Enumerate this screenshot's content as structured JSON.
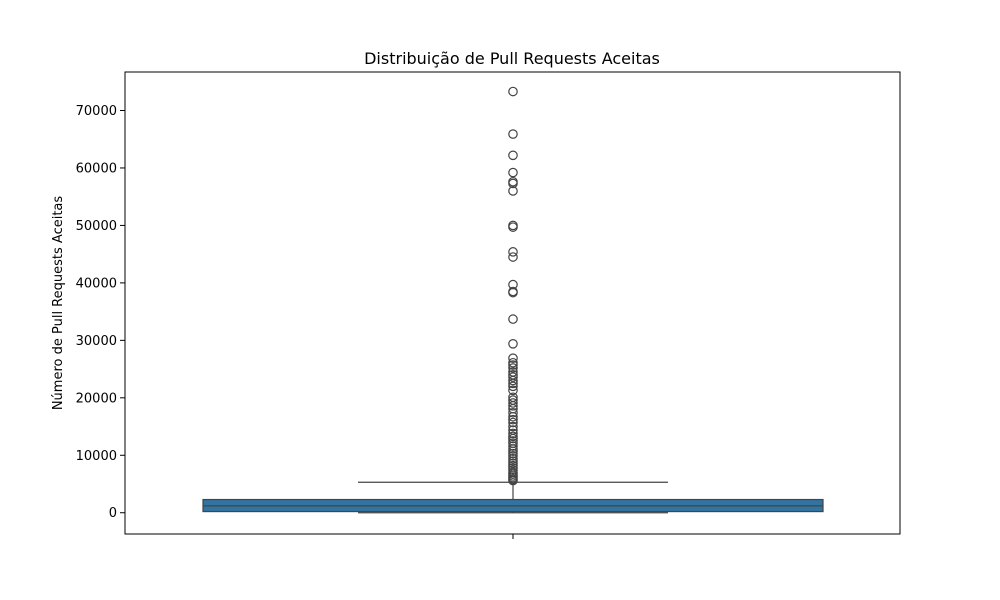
{
  "chart_data": {
    "type": "box",
    "title": "Distribuição de Pull Requests Aceitas",
    "xlabel": "",
    "ylabel": "Número de Pull Requests Aceitas",
    "ylim": [
      -3700,
      76700
    ],
    "yticks": [
      0,
      10000,
      20000,
      30000,
      40000,
      50000,
      60000,
      70000
    ],
    "ytick_labels": [
      "0",
      "10000",
      "20000",
      "30000",
      "40000",
      "50000",
      "60000",
      "70000"
    ],
    "grid": false,
    "colors": {
      "box_fill": "#3274a1",
      "line": "#444444"
    },
    "box": {
      "min": 0,
      "q1": 200,
      "median": 1200,
      "q3": 2300,
      "max": 5300
    },
    "outliers": [
      73300,
      65900,
      62200,
      59200,
      57600,
      57300,
      56000,
      50000,
      49700,
      45400,
      44500,
      39700,
      38500,
      38300,
      33700,
      29400,
      26900,
      26100,
      25700,
      25200,
      24500,
      24000,
      23600,
      23000,
      22500,
      22000,
      21300,
      20100,
      19600,
      19100,
      18600,
      18100,
      17400,
      16700,
      16200,
      15700,
      15000,
      14400,
      13800,
      13300,
      12900,
      12500,
      12100,
      11600,
      11100,
      10700,
      10300,
      9900,
      9400,
      9000,
      8600,
      8200,
      7800,
      7400,
      7000,
      6700,
      6400,
      6100,
      5800,
      5600
    ]
  }
}
